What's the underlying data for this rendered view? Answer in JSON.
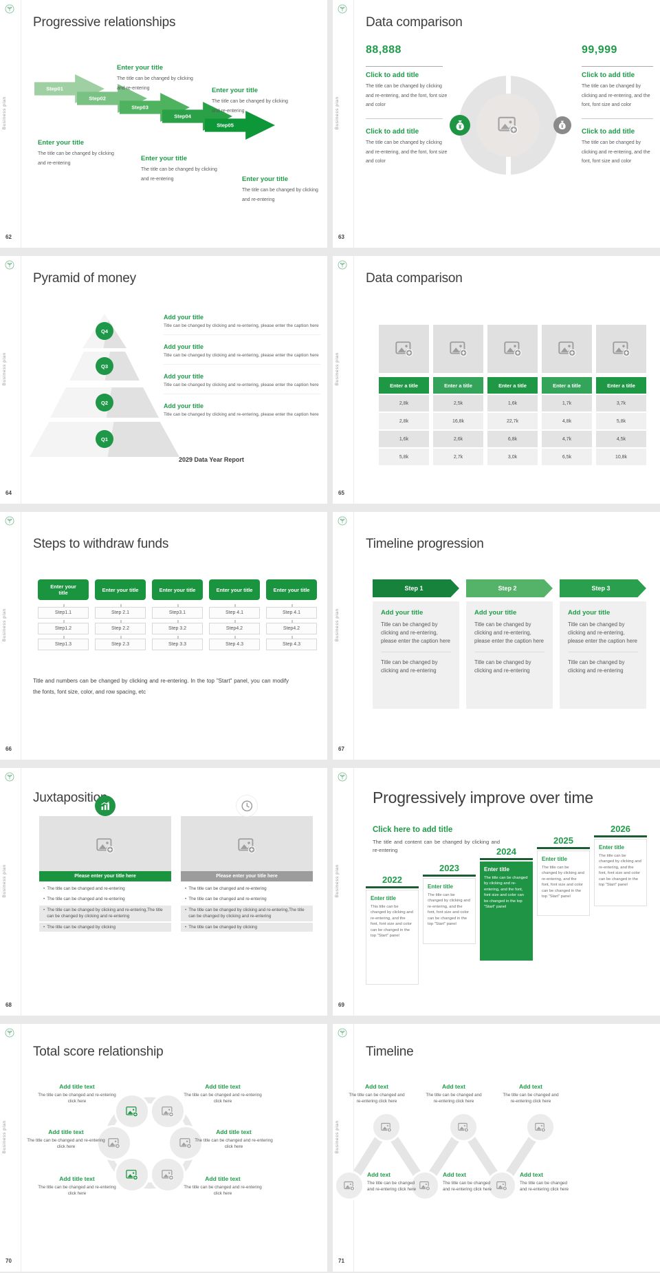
{
  "page": {
    "accent": "#1f9c49"
  },
  "common": {
    "vertical_label": "Business plan"
  },
  "slides": [
    {
      "number": "62",
      "title": "Progressive relationships",
      "steps": [
        {
          "label": "Step01"
        },
        {
          "label": "Step02"
        },
        {
          "label": "Step03"
        },
        {
          "label": "Step04"
        },
        {
          "label": "Step05"
        }
      ],
      "blocks": [
        {
          "title": "Enter your title",
          "body": "The title can be changed by clicking and re-entering"
        },
        {
          "title": "Enter your title",
          "body": "The title can be changed by clicking and re-entering"
        },
        {
          "title": "Enter your title",
          "body": "The title can be changed by clicking and re-entering"
        },
        {
          "title": "Enter your title",
          "body": "The title can be changed by clicking and re-entering"
        },
        {
          "title": "Enter your title",
          "body": "The title can be changed by clicking and re-entering"
        }
      ]
    },
    {
      "number": "63",
      "title": "Data comparison",
      "left_value": "88,888",
      "right_value": "99,999",
      "blocks": [
        {
          "title": "Click to add title",
          "body": "The title can be changed by clicking and re-entering, and the font, font size and color"
        },
        {
          "title": "Click to add title",
          "body": "The title can be changed by clicking and re-entering, and the font, font size and color"
        },
        {
          "title": "Click to add title",
          "body": "The title can be changed by clicking and re-entering, and the font, font size and color"
        },
        {
          "title": "Click to add title",
          "body": "The title can be changed by clicking and re-entering, and the font, font size and color"
        }
      ]
    },
    {
      "number": "64",
      "title": "Pyramid of money",
      "tiers": [
        "Q4",
        "Q3",
        "Q2",
        "Q1"
      ],
      "blocks": [
        {
          "title": "Add your title",
          "body": "Title can be changed by clicking and re-entering, please enter the caption here"
        },
        {
          "title": "Add your title",
          "body": "Title can be changed by clicking and re-entering, please enter the caption here"
        },
        {
          "title": "Add your title",
          "body": "Title can be changed by clicking and re-entering, please enter the caption here"
        },
        {
          "title": "Add your title",
          "body": "Title can be changed by clicking and re-entering, please enter the caption here"
        }
      ],
      "footer": "2029 Data Year Report"
    },
    {
      "number": "65",
      "title": "Data comparison",
      "chart_data": {
        "type": "table",
        "headers": [
          "Enter a title",
          "Enter a title",
          "Enter a title",
          "Enter a title",
          "Enter a title"
        ],
        "rows": [
          [
            "2,8k",
            "2,5k",
            "1,6k",
            "1,7k",
            "3,7k"
          ],
          [
            "2,8k",
            "16,8k",
            "22,7k",
            "4,8k",
            "5,8k"
          ],
          [
            "1,6k",
            "2,6k",
            "6,8k",
            "4,7k",
            "4,5k"
          ],
          [
            "5,8k",
            "2,7k",
            "3,0k",
            "6,5k",
            "10,8k"
          ]
        ]
      }
    },
    {
      "number": "66",
      "title": "Steps to withdraw funds",
      "columns": [
        {
          "header": "Enter your title",
          "steps": [
            "Step1.1",
            "Step1.2",
            "Step1.3"
          ]
        },
        {
          "header": "Enter your title",
          "steps": [
            "Step 2.1",
            "Step 2.2",
            "Step 2.3"
          ]
        },
        {
          "header": "Enter your title",
          "steps": [
            "Step3.1",
            "Step 3.2",
            "Step 3.3"
          ]
        },
        {
          "header": "Enter your title",
          "steps": [
            "Step 4.1",
            "Step4.2",
            "Step 4.3"
          ]
        },
        {
          "header": "Enter your title",
          "steps": [
            "Step 4.1",
            "Step4.2",
            "Step 4.3"
          ]
        }
      ],
      "note": "Title and numbers can be changed by clicking and re-entering. In the top \"Start\" panel, you can modify the fonts, font size, color, and row spacing, etc"
    },
    {
      "number": "67",
      "title": "Timeline progression",
      "columns": [
        {
          "banner": "Step 1",
          "heading": "Add your title",
          "body1": "Title can be changed by clicking and re-entering, please enter the caption here",
          "body2": "Title can be changed by clicking and re-entering"
        },
        {
          "banner": "Step 2",
          "heading": "Add your title",
          "body1": "Title can be changed by clicking and re-entering, please enter the caption here",
          "body2": "Title can be changed by clicking and re-entering"
        },
        {
          "banner": "Step 3",
          "heading": "Add your title",
          "body1": "Title can be changed by clicking and re-entering, please enter the caption here",
          "body2": "Title can be changed by clicking and re-entering"
        }
      ]
    },
    {
      "number": "68",
      "title": "Juxtaposition",
      "panels": [
        {
          "bar": "Please enter your title here",
          "bullets": [
            "The title can be changed and re-entering",
            "The title can be changed and re-entering",
            "The title can be changed by clicking and re-entering,The title can be changed by clicking and re-entering",
            "The title can be changed by clicking"
          ]
        },
        {
          "bar": "Please enter your title here",
          "bullets": [
            "The title can be changed and re-entering",
            "The title can be changed and re-entering",
            "The title can be changed by clicking and re-entering,The title can be changed by clicking and re-entering",
            "The title can be changed by clicking"
          ]
        }
      ]
    },
    {
      "number": "69",
      "title": "Progressively improve over time",
      "heading": "Click here to add title",
      "subheading": "The title and content can be changed by clicking and re-entering",
      "milestones": [
        {
          "year": "2022",
          "title": "Enter title",
          "body": "This title can be changed by clicking and re-entering, and the font, font size and color can be changed in the top \"Start\" panel"
        },
        {
          "year": "2023",
          "title": "Enter title",
          "body": "The title can be changed by clicking and re-entering, and the font, font size and color can be changed in the top \"Start\" panel"
        },
        {
          "year": "2024",
          "title": "Enter title",
          "body": "The title can be changed by clicking and re-entering, and the font, font size and color can be changed in the top \"Start\" panel"
        },
        {
          "year": "2025",
          "title": "Enter title",
          "body": "The title can be changed by clicking and re-entering, and the font, font size and color can be changed in the top \"Start\" panel"
        },
        {
          "year": "2026",
          "title": "Enter title",
          "body": "The title can be changed by clicking and re-entering, and the font, font size and color can be changed in the top \"Start\" panel"
        }
      ]
    },
    {
      "number": "70",
      "title": "Total score relationship",
      "items": [
        {
          "title": "Add title text",
          "body": "The title can be changed and re-entering click here"
        },
        {
          "title": "Add title text",
          "body": "The title can be changed and re-entering click here"
        },
        {
          "title": "Add title text",
          "body": "The title can be changed and re-entering click here"
        },
        {
          "title": "Add title text",
          "body": "The title can be changed and re-entering click here"
        },
        {
          "title": "Add title text",
          "body": "The title can be changed and re-entering click here"
        },
        {
          "title": "Add title text",
          "body": "The title can be changed and re-entering click here"
        }
      ]
    },
    {
      "number": "71",
      "title": "Timeline",
      "top_items": [
        {
          "title": "Add text",
          "body": "The title can be changed and re-entering click here"
        },
        {
          "title": "Add text",
          "body": "The title can be changed and re-entering click here"
        },
        {
          "title": "Add text",
          "body": "The title can be changed and re-entering click here"
        }
      ],
      "bottom_items": [
        {
          "title": "Add text",
          "body": "The title can be changed and re-entering click here"
        },
        {
          "title": "Add text",
          "body": "The title can be changed and re-entering click here"
        },
        {
          "title": "Add text",
          "body": "The title can be changed and re-entering click here"
        }
      ]
    }
  ]
}
